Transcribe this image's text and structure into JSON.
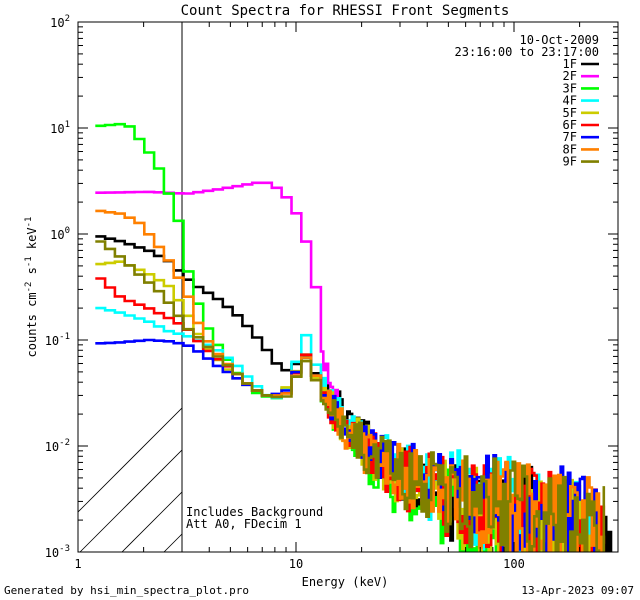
{
  "chart_data": {
    "type": "line",
    "title": "Count Spectra for RHESSI Front Segments",
    "xlabel": "Energy (keV)",
    "ylabel_main": "counts cm",
    "ylabel_sup1": "-2",
    "ylabel_mid": " s",
    "ylabel_sup2": "-1",
    "ylabel_end": " keV",
    "ylabel_sup3": "-1",
    "xscale": "log",
    "yscale": "log",
    "xlim": [
      1,
      300
    ],
    "ylim": [
      0.001,
      100
    ],
    "x_ticks": [
      {
        "v": 1,
        "label": "1"
      },
      {
        "v": 10,
        "label": "10"
      },
      {
        "v": 100,
        "label": "100"
      }
    ],
    "y_ticks": [
      {
        "v": 0.001,
        "base": "10",
        "exp": "-3"
      },
      {
        "v": 0.01,
        "base": "10",
        "exp": "-2"
      },
      {
        "v": 0.1,
        "base": "10",
        "exp": "-1"
      },
      {
        "v": 1,
        "base": "10",
        "exp": "0"
      },
      {
        "v": 10,
        "base": "10",
        "exp": "1"
      },
      {
        "v": 100,
        "base": "10",
        "exp": "2"
      }
    ],
    "hatched_region_keV": [
      1,
      3
    ],
    "date": "10-Oct-2009",
    "time_range": "23:16:00 to 23:17:00",
    "annotation_lines": [
      "Includes Background",
      "Att A0, FDecim 1"
    ],
    "series": [
      {
        "name": "1F",
        "color": "#000000",
        "anchors": [
          [
            1.2,
            0.95
          ],
          [
            1.5,
            0.85
          ],
          [
            2.0,
            0.7
          ],
          [
            2.5,
            0.55
          ],
          [
            3.0,
            0.38
          ],
          [
            3.5,
            0.3
          ],
          [
            4.0,
            0.26
          ],
          [
            5.0,
            0.18
          ],
          [
            6.0,
            0.12
          ],
          [
            7.0,
            0.08
          ],
          [
            8.0,
            0.055
          ],
          [
            9.0,
            0.05
          ],
          [
            10.3,
            0.075
          ],
          [
            11.0,
            0.06
          ],
          [
            12.0,
            0.045
          ],
          [
            15.0,
            0.025
          ],
          [
            20.0,
            0.012
          ],
          [
            30.0,
            0.0055
          ],
          [
            50.0,
            0.0032
          ],
          [
            80.0,
            0.0024
          ],
          [
            120.0,
            0.0018
          ],
          [
            200.0,
            0.0013
          ],
          [
            280.0,
            0.001
          ]
        ],
        "seed": 1
      },
      {
        "name": "2F",
        "color": "#ff00ff",
        "anchors": [
          [
            1.2,
            2.45
          ],
          [
            2.0,
            2.5
          ],
          [
            3.0,
            2.4
          ],
          [
            4.0,
            2.6
          ],
          [
            5.0,
            2.8
          ],
          [
            6.0,
            3.0
          ],
          [
            6.8,
            3.1
          ],
          [
            7.5,
            2.9
          ],
          [
            8.5,
            2.3
          ],
          [
            9.5,
            1.6
          ],
          [
            10.5,
            0.9
          ],
          [
            11.0,
            0.6
          ],
          [
            12.0,
            0.25
          ],
          [
            13.0,
            0.09
          ],
          [
            14.0,
            0.04
          ],
          [
            15.0,
            0.025
          ],
          [
            16.0,
            0.02
          ]
        ],
        "seed": 2
      },
      {
        "name": "3F",
        "color": "#00ff00",
        "anchors": [
          [
            1.2,
            10.5
          ],
          [
            1.6,
            11.0
          ],
          [
            1.9,
            7.0
          ],
          [
            2.2,
            4.5
          ],
          [
            2.5,
            2.3
          ],
          [
            2.8,
            1.2
          ],
          [
            3.0,
            0.5
          ],
          [
            3.3,
            0.25
          ],
          [
            3.8,
            0.12
          ],
          [
            4.5,
            0.07
          ],
          [
            5.5,
            0.04
          ],
          [
            6.5,
            0.03
          ],
          [
            8.0,
            0.028
          ],
          [
            9.5,
            0.045
          ],
          [
            10.5,
            0.075
          ],
          [
            11.5,
            0.05
          ],
          [
            13.0,
            0.03
          ],
          [
            16.0,
            0.015
          ],
          [
            22.0,
            0.006
          ],
          [
            35.0,
            0.0035
          ],
          [
            60.0,
            0.0022
          ],
          [
            100.0,
            0.0016
          ],
          [
            150.0,
            0.0012
          ]
        ],
        "seed": 3
      },
      {
        "name": "4F",
        "color": "#00ffff",
        "anchors": [
          [
            1.2,
            0.2
          ],
          [
            1.5,
            0.18
          ],
          [
            2.0,
            0.15
          ],
          [
            2.5,
            0.12
          ],
          [
            3.0,
            0.11
          ],
          [
            4.0,
            0.085
          ],
          [
            5.0,
            0.06
          ],
          [
            6.0,
            0.04
          ],
          [
            7.0,
            0.03
          ],
          [
            8.0,
            0.028
          ],
          [
            9.0,
            0.04
          ],
          [
            10.0,
            0.09
          ],
          [
            10.5,
            0.115
          ],
          [
            11.0,
            0.09
          ],
          [
            12.0,
            0.05
          ],
          [
            14.0,
            0.028
          ],
          [
            18.0,
            0.014
          ],
          [
            25.0,
            0.008
          ],
          [
            40.0,
            0.0045
          ],
          [
            70.0,
            0.003
          ],
          [
            120.0,
            0.002
          ],
          [
            200.0,
            0.0016
          ],
          [
            260.0,
            0.0013
          ]
        ],
        "seed": 4
      },
      {
        "name": "5F",
        "color": "#cccc00",
        "anchors": [
          [
            1.2,
            0.52
          ],
          [
            1.5,
            0.55
          ],
          [
            2.0,
            0.42
          ],
          [
            2.5,
            0.32
          ],
          [
            3.0,
            0.18
          ],
          [
            3.5,
            0.1
          ],
          [
            4.0,
            0.07
          ],
          [
            5.0,
            0.045
          ],
          [
            6.0,
            0.035
          ],
          [
            7.0,
            0.03
          ],
          [
            8.0,
            0.03
          ],
          [
            9.0,
            0.04
          ],
          [
            10.3,
            0.07
          ],
          [
            11.0,
            0.055
          ],
          [
            12.5,
            0.035
          ],
          [
            15.0,
            0.02
          ],
          [
            20.0,
            0.01
          ],
          [
            30.0,
            0.005
          ],
          [
            50.0,
            0.003
          ],
          [
            90.0,
            0.0022
          ],
          [
            150.0,
            0.0016
          ],
          [
            250.0,
            0.0012
          ]
        ],
        "seed": 5
      },
      {
        "name": "6F",
        "color": "#ff0000",
        "anchors": [
          [
            1.2,
            0.38
          ],
          [
            1.5,
            0.25
          ],
          [
            2.0,
            0.2
          ],
          [
            2.5,
            0.16
          ],
          [
            3.0,
            0.13
          ],
          [
            3.5,
            0.09
          ],
          [
            4.0,
            0.07
          ],
          [
            5.0,
            0.05
          ],
          [
            6.0,
            0.035
          ],
          [
            7.0,
            0.03
          ],
          [
            8.5,
            0.03
          ],
          [
            10.0,
            0.06
          ],
          [
            10.5,
            0.075
          ],
          [
            11.5,
            0.05
          ],
          [
            13.0,
            0.03
          ],
          [
            16.0,
            0.016
          ],
          [
            22.0,
            0.008
          ],
          [
            35.0,
            0.0045
          ],
          [
            60.0,
            0.003
          ],
          [
            100.0,
            0.0022
          ],
          [
            180.0,
            0.0015
          ],
          [
            260.0,
            0.0012
          ]
        ],
        "seed": 6
      },
      {
        "name": "7F",
        "color": "#0000ff",
        "anchors": [
          [
            1.2,
            0.093
          ],
          [
            1.5,
            0.095
          ],
          [
            2.0,
            0.1
          ],
          [
            2.5,
            0.097
          ],
          [
            3.0,
            0.09
          ],
          [
            3.5,
            0.075
          ],
          [
            4.0,
            0.06
          ],
          [
            5.0,
            0.045
          ],
          [
            6.0,
            0.035
          ],
          [
            7.0,
            0.03
          ],
          [
            8.5,
            0.032
          ],
          [
            10.0,
            0.06
          ],
          [
            10.5,
            0.07
          ],
          [
            11.5,
            0.05
          ],
          [
            13.0,
            0.03
          ],
          [
            16.0,
            0.016
          ],
          [
            22.0,
            0.0085
          ],
          [
            35.0,
            0.005
          ],
          [
            55.0,
            0.0035
          ],
          [
            90.0,
            0.0028
          ],
          [
            150.0,
            0.002
          ],
          [
            250.0,
            0.0016
          ]
        ],
        "seed": 7
      },
      {
        "name": "8F",
        "color": "#ff8000",
        "anchors": [
          [
            1.2,
            1.65
          ],
          [
            1.5,
            1.55
          ],
          [
            1.8,
            1.3
          ],
          [
            2.1,
            0.9
          ],
          [
            2.5,
            0.55
          ],
          [
            3.0,
            0.28
          ],
          [
            3.5,
            0.12
          ],
          [
            4.0,
            0.08
          ],
          [
            5.0,
            0.05
          ],
          [
            6.0,
            0.035
          ],
          [
            7.0,
            0.03
          ],
          [
            8.5,
            0.03
          ],
          [
            10.0,
            0.055
          ],
          [
            10.5,
            0.07
          ],
          [
            11.5,
            0.05
          ],
          [
            13.0,
            0.03
          ],
          [
            16.0,
            0.016
          ],
          [
            22.0,
            0.008
          ],
          [
            35.0,
            0.0045
          ],
          [
            60.0,
            0.003
          ],
          [
            100.0,
            0.0022
          ],
          [
            180.0,
            0.0016
          ],
          [
            260.0,
            0.0013
          ]
        ],
        "seed": 8
      },
      {
        "name": "9F",
        "color": "#808000",
        "anchors": [
          [
            1.2,
            0.85
          ],
          [
            1.5,
            0.6
          ],
          [
            1.8,
            0.42
          ],
          [
            2.2,
            0.3
          ],
          [
            2.6,
            0.2
          ],
          [
            3.0,
            0.13
          ],
          [
            3.5,
            0.1
          ],
          [
            4.0,
            0.075
          ],
          [
            5.0,
            0.05
          ],
          [
            6.0,
            0.035
          ],
          [
            7.0,
            0.03
          ],
          [
            8.5,
            0.028
          ],
          [
            10.0,
            0.055
          ],
          [
            10.5,
            0.065
          ],
          [
            11.5,
            0.045
          ],
          [
            13.0,
            0.028
          ],
          [
            16.0,
            0.015
          ],
          [
            22.0,
            0.008
          ],
          [
            35.0,
            0.0045
          ],
          [
            60.0,
            0.003
          ],
          [
            100.0,
            0.0022
          ],
          [
            180.0,
            0.0015
          ],
          [
            260.0,
            0.0012
          ]
        ],
        "seed": 9
      }
    ]
  },
  "footer": {
    "left": "Generated by hsi_min_spectra_plot.pro",
    "right": "13-Apr-2023 09:07"
  }
}
